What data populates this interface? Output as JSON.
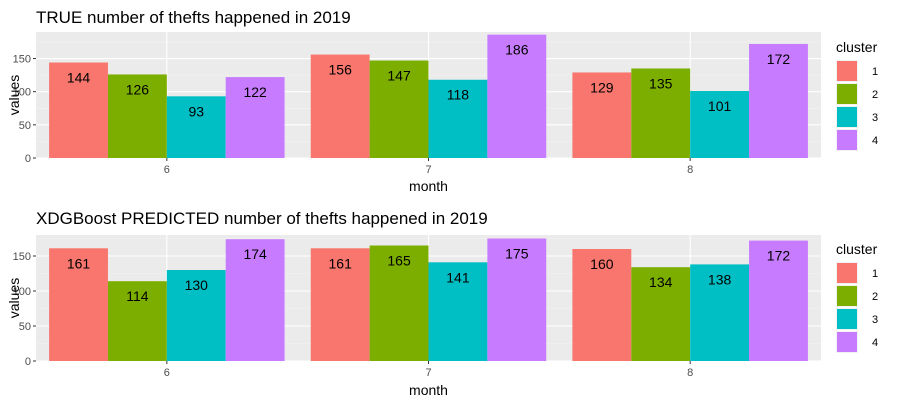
{
  "chart_data": [
    {
      "type": "bar",
      "title": "TRUE number of thefts happened in 2019",
      "xlabel": "month",
      "ylabel": "values",
      "categories": [
        "6",
        "7",
        "8"
      ],
      "ylim": [
        0,
        190
      ],
      "yticks": [
        0,
        50,
        100,
        150
      ],
      "grid": true,
      "legend": {
        "title": "cluster",
        "position": "right"
      },
      "series": [
        {
          "name": "1",
          "color": "#F8766D",
          "values": [
            144,
            156,
            129
          ]
        },
        {
          "name": "2",
          "color": "#7CAE00",
          "values": [
            126,
            147,
            135
          ]
        },
        {
          "name": "3",
          "color": "#00BFC4",
          "values": [
            93,
            118,
            101
          ]
        },
        {
          "name": "4",
          "color": "#C77CFF",
          "values": [
            122,
            186,
            172
          ]
        }
      ],
      "data_labels": [
        [
          "144",
          "156",
          "129"
        ],
        [
          "126",
          "147",
          "135"
        ],
        [
          "93",
          "118",
          "101"
        ],
        [
          "122",
          "186",
          "172"
        ]
      ]
    },
    {
      "type": "bar",
      "title": "XDGBoost PREDICTED number of thefts happened in 2019",
      "xlabel": "month",
      "ylabel": "values",
      "categories": [
        "6",
        "7",
        "8"
      ],
      "ylim": [
        0,
        180
      ],
      "yticks": [
        0,
        50,
        100,
        150
      ],
      "grid": true,
      "legend": {
        "title": "cluster",
        "position": "right"
      },
      "series": [
        {
          "name": "1",
          "color": "#F8766D",
          "values": [
            161,
            161,
            160
          ]
        },
        {
          "name": "2",
          "color": "#7CAE00",
          "values": [
            114,
            165,
            134
          ]
        },
        {
          "name": "3",
          "color": "#00BFC4",
          "values": [
            130,
            141,
            138
          ]
        },
        {
          "name": "4",
          "color": "#C77CFF",
          "values": [
            174,
            175,
            172
          ]
        }
      ],
      "data_labels": [
        [
          "161",
          "161",
          "160"
        ],
        [
          "114",
          "165",
          "134"
        ],
        [
          "130",
          "141",
          "138"
        ],
        [
          "174",
          "175",
          "172"
        ]
      ]
    }
  ],
  "colors": {
    "panel_background": "#EBEBEB",
    "grid_major": "#FFFFFF",
    "grid_minor": "#F4F4F4"
  }
}
